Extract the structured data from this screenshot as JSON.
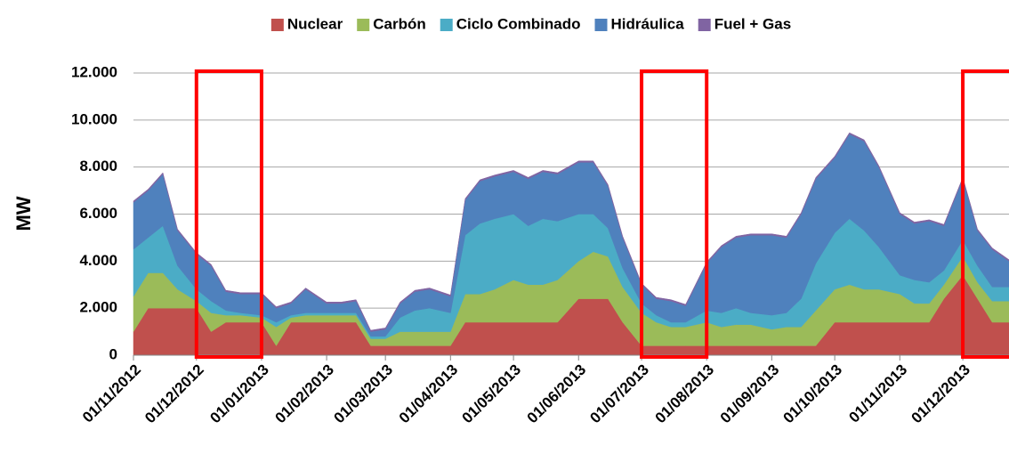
{
  "chart_data": {
    "type": "stacked_area",
    "y_label": "MW",
    "x": [
      "01/11/2012",
      "08/11/2012",
      "15/11/2012",
      "22/11/2012",
      "01/12/2012",
      "08/12/2012",
      "15/12/2012",
      "22/12/2012",
      "01/01/2013",
      "08/01/2013",
      "15/01/2013",
      "22/01/2013",
      "01/02/2013",
      "08/02/2013",
      "15/02/2013",
      "22/02/2013",
      "01/03/2013",
      "08/03/2013",
      "15/03/2013",
      "22/03/2013",
      "01/04/2013",
      "08/04/2013",
      "15/04/2013",
      "22/04/2013",
      "01/05/2013",
      "08/05/2013",
      "15/05/2013",
      "22/05/2013",
      "01/06/2013",
      "08/06/2013",
      "15/06/2013",
      "22/06/2013",
      "01/07/2013",
      "08/07/2013",
      "15/07/2013",
      "22/07/2013",
      "01/08/2013",
      "08/08/2013",
      "15/08/2013",
      "22/08/2013",
      "01/09/2013",
      "08/09/2013",
      "15/09/2013",
      "22/09/2013",
      "01/10/2013",
      "08/10/2013",
      "15/10/2013",
      "22/10/2013",
      "01/11/2013",
      "08/11/2013",
      "15/11/2013",
      "22/11/2013",
      "01/12/2013",
      "08/12/2013",
      "15/12/2013",
      "23/12/2013"
    ],
    "series": [
      {
        "name": "Nuclear",
        "color": "#c0504d",
        "values": [
          1000,
          2000,
          2000,
          2000,
          2000,
          1000,
          1400,
          1400,
          1400,
          400,
          1400,
          1400,
          1400,
          1400,
          1400,
          400,
          400,
          400,
          400,
          400,
          400,
          1400,
          1400,
          1400,
          1400,
          1400,
          1400,
          1400,
          2400,
          2400,
          2400,
          1400,
          400,
          400,
          400,
          400,
          400,
          400,
          400,
          400,
          400,
          400,
          400,
          400,
          1400,
          1400,
          1400,
          1400,
          1400,
          1400,
          1400,
          2400,
          3400,
          2400,
          1400,
          1400
        ]
      },
      {
        "name": "Carbón",
        "color": "#9bbb59",
        "values": [
          1500,
          1500,
          1500,
          800,
          300,
          800,
          300,
          300,
          200,
          800,
          200,
          300,
          300,
          300,
          300,
          300,
          300,
          600,
          600,
          600,
          600,
          1200,
          1200,
          1400,
          1800,
          1600,
          1600,
          1800,
          1600,
          2000,
          1800,
          1500,
          1400,
          1000,
          800,
          800,
          1000,
          800,
          900,
          900,
          700,
          800,
          800,
          1500,
          1400,
          1600,
          1400,
          1400,
          1200,
          800,
          800,
          600,
          800,
          700,
          900,
          900
        ]
      },
      {
        "name": "Ciclo Combinado",
        "color": "#4bacc6",
        "values": [
          2000,
          1500,
          2000,
          1000,
          500,
          500,
          200,
          100,
          100,
          200,
          100,
          100,
          100,
          100,
          100,
          100,
          100,
          600,
          900,
          1000,
          800,
          2500,
          3000,
          3000,
          2800,
          2500,
          2800,
          2500,
          2000,
          1600,
          1200,
          800,
          400,
          300,
          200,
          200,
          500,
          600,
          700,
          500,
          600,
          600,
          1200,
          2000,
          2400,
          2800,
          2500,
          1800,
          800,
          1000,
          900,
          600,
          700,
          700,
          600,
          600
        ]
      },
      {
        "name": "Hidráulica",
        "color": "#4f81bd",
        "values": [
          2000,
          2000,
          2200,
          1500,
          1500,
          1500,
          800,
          800,
          900,
          600,
          500,
          1000,
          400,
          400,
          500,
          200,
          300,
          600,
          800,
          800,
          700,
          1500,
          1800,
          1800,
          1800,
          2000,
          2000,
          2000,
          2200,
          2200,
          1800,
          1300,
          800,
          700,
          900,
          700,
          2000,
          2800,
          3000,
          3300,
          3400,
          3200,
          3600,
          3600,
          3200,
          3600,
          3800,
          3400,
          2600,
          2400,
          2600,
          1900,
          2600,
          1500,
          1600,
          1100
        ]
      },
      {
        "name": "Fuel + Gas",
        "color": "#8064a2",
        "values": [
          60,
          60,
          60,
          60,
          60,
          60,
          60,
          60,
          60,
          60,
          60,
          60,
          60,
          60,
          60,
          60,
          60,
          60,
          60,
          60,
          60,
          60,
          60,
          60,
          60,
          60,
          60,
          60,
          60,
          60,
          60,
          60,
          60,
          60,
          60,
          60,
          60,
          60,
          60,
          60,
          60,
          60,
          60,
          60,
          60,
          60,
          60,
          60,
          60,
          60,
          60,
          60,
          60,
          60,
          60,
          60
        ]
      }
    ],
    "xlim": [
      "01/11/2012",
      "23/12/2013"
    ],
    "xticks": [
      "01/11/2012",
      "01/12/2012",
      "01/01/2013",
      "01/02/2013",
      "01/03/2013",
      "01/04/2013",
      "01/05/2013",
      "01/06/2013",
      "01/07/2013",
      "01/08/2013",
      "01/09/2013",
      "01/10/2013",
      "01/11/2013",
      "01/12/2013"
    ],
    "ylim": [
      0,
      12000
    ],
    "yticks": [
      0,
      {
        "value": 2000,
        "label": "2.000"
      },
      {
        "value": 4000,
        "label": "4.000"
      },
      {
        "value": 6000,
        "label": "6.000"
      },
      {
        "value": 8000,
        "label": "8.000"
      },
      {
        "value": 10000,
        "label": "10.000"
      },
      {
        "value": 12000,
        "label": "12.000"
      }
    ],
    "grid": true,
    "legend": "top",
    "highlights": [
      {
        "start": "01/12/2012",
        "end": "01/01/2013",
        "color": "#ff0000"
      },
      {
        "start": "01/07/2013",
        "end": "01/08/2013",
        "color": "#ff0000"
      },
      {
        "start": "01/12/2013",
        "end": "01/01/2014",
        "color": "#ff0000"
      }
    ]
  }
}
